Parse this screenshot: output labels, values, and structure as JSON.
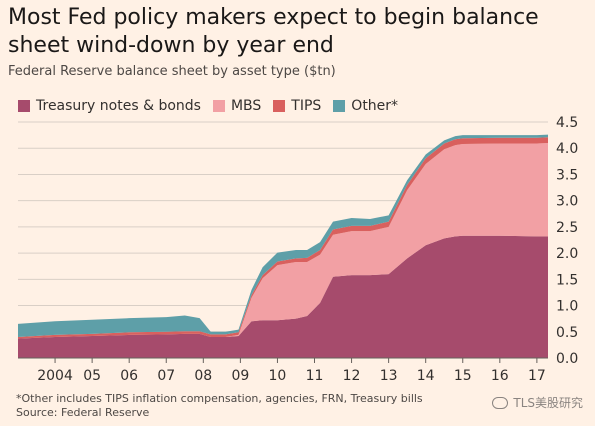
{
  "title": "Most Fed policy makers expect to begin balance sheet wind-down by year end",
  "subtitle": "Federal Reserve balance sheet by asset type ($tn)",
  "footnote": "*Other includes TIPS inflation compensation, agencies, FRN, Treasury bills",
  "source": "Source: Federal Reserve",
  "watermark": "TLS美股研究",
  "colors": {
    "background": "#fff1e5",
    "treasury": "#a64b6c",
    "mbs": "#f2a0a4",
    "tips": "#d9605e",
    "other": "#5e9fa8",
    "grid": "#d9cfc6"
  },
  "chart_data": {
    "type": "area",
    "stacked": true,
    "x": [
      2003.0,
      2004.0,
      2005.0,
      2006.0,
      2007.0,
      2007.5,
      2007.9,
      2008.2,
      2008.6,
      2008.95,
      2009.3,
      2009.6,
      2010.0,
      2010.5,
      2010.8,
      2011.15,
      2011.5,
      2012.0,
      2012.5,
      2013.0,
      2013.5,
      2014.0,
      2014.5,
      2014.8,
      2015.0,
      2016.0,
      2017.0,
      2017.3
    ],
    "series": [
      {
        "name": "Treasury notes & bonds",
        "values": [
          0.37,
          0.4,
          0.42,
          0.44,
          0.45,
          0.46,
          0.46,
          0.4,
          0.4,
          0.42,
          0.7,
          0.72,
          0.72,
          0.75,
          0.8,
          1.05,
          1.55,
          1.58,
          1.58,
          1.6,
          1.9,
          2.15,
          2.28,
          2.32,
          2.33,
          2.33,
          2.32,
          2.32
        ]
      },
      {
        "name": "MBS",
        "values": [
          0,
          0,
          0,
          0,
          0,
          0,
          0,
          0,
          0,
          0.02,
          0.45,
          0.8,
          1.05,
          1.08,
          1.03,
          0.92,
          0.8,
          0.84,
          0.84,
          0.9,
          1.3,
          1.55,
          1.7,
          1.74,
          1.75,
          1.76,
          1.77,
          1.78
        ]
      },
      {
        "name": "TIPS",
        "values": [
          0.03,
          0.04,
          0.04,
          0.05,
          0.05,
          0.05,
          0.05,
          0.05,
          0.05,
          0.05,
          0.05,
          0.06,
          0.07,
          0.07,
          0.08,
          0.09,
          0.1,
          0.1,
          0.1,
          0.1,
          0.1,
          0.11,
          0.11,
          0.11,
          0.11,
          0.11,
          0.11,
          0.11
        ]
      },
      {
        "name": "Other*",
        "values": [
          0.25,
          0.26,
          0.27,
          0.27,
          0.28,
          0.3,
          0.25,
          0.05,
          0.05,
          0.05,
          0.1,
          0.15,
          0.17,
          0.16,
          0.15,
          0.15,
          0.15,
          0.15,
          0.13,
          0.12,
          0.09,
          0.07,
          0.06,
          0.06,
          0.06,
          0.05,
          0.05,
          0.05
        ]
      }
    ],
    "xticks": [
      {
        "value": 2004,
        "label": "2004"
      },
      {
        "value": 2005,
        "label": "05"
      },
      {
        "value": 2006,
        "label": "06"
      },
      {
        "value": 2007,
        "label": "07"
      },
      {
        "value": 2008,
        "label": "08"
      },
      {
        "value": 2009,
        "label": "09"
      },
      {
        "value": 2010,
        "label": "10"
      },
      {
        "value": 2011,
        "label": "11"
      },
      {
        "value": 2012,
        "label": "12"
      },
      {
        "value": 2013,
        "label": "13"
      },
      {
        "value": 2014,
        "label": "14"
      },
      {
        "value": 2015,
        "label": "15"
      },
      {
        "value": 2016,
        "label": "16"
      },
      {
        "value": 2017,
        "label": "17"
      }
    ],
    "yticks": [
      "0.0",
      "0.5",
      "1.0",
      "1.5",
      "2.0",
      "2.5",
      "3.0",
      "3.5",
      "4.0",
      "4.5"
    ],
    "xlim": [
      2003.0,
      2017.3
    ],
    "ylim": [
      0,
      4.5
    ],
    "grid": true,
    "legend_position": "top-left",
    "yaxis_side": "right"
  }
}
